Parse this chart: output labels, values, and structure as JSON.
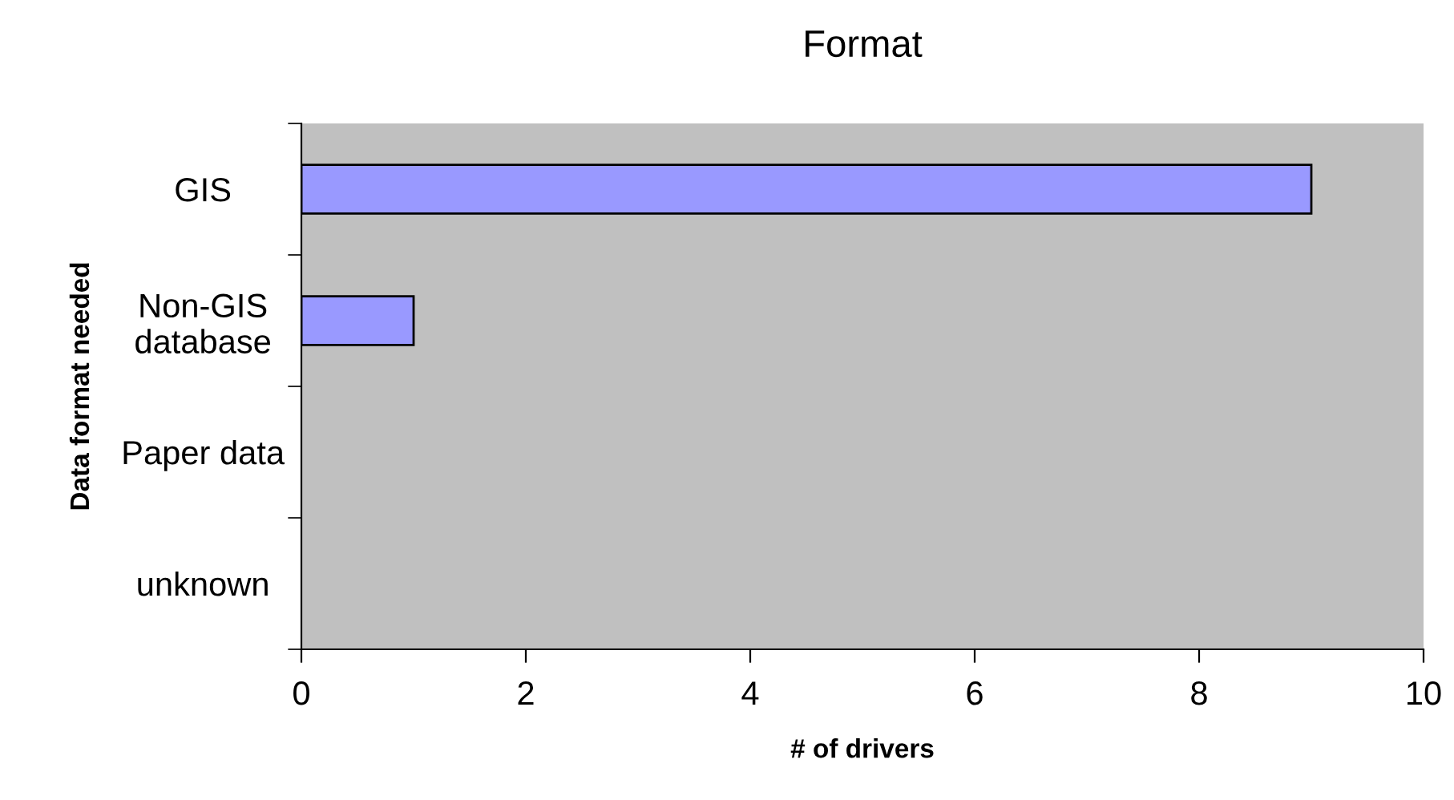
{
  "chart_data": {
    "type": "bar",
    "orientation": "horizontal",
    "title": "Format",
    "xlabel": "# of drivers",
    "ylabel": "Data format needed",
    "categories": [
      "GIS",
      "Non-GIS\ndatabase",
      "Paper data",
      "unknown"
    ],
    "series": [
      {
        "color": "#9999ff",
        "values": [
          9,
          1,
          0,
          0
        ]
      }
    ],
    "xlim": [
      0,
      10
    ],
    "xticks": [
      0,
      2,
      4,
      6,
      8,
      10
    ],
    "grid": false,
    "legend": false
  }
}
